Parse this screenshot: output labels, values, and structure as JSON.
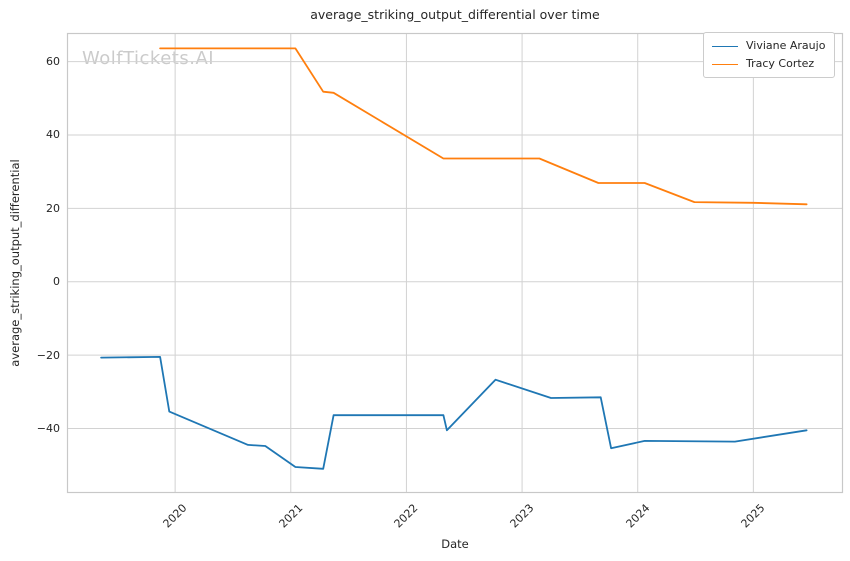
{
  "watermark": {
    "text": "WolfTickets.AI"
  },
  "colors": {
    "background": "#ffffff",
    "grid": "#d2d2d2",
    "axes_border": "#c8c8c8",
    "text": "#262626",
    "watermark": "#cbcbcb",
    "series_blue": "#1f77b4",
    "series_orange": "#ff7f0e"
  },
  "chart_data": {
    "type": "line",
    "title": "average_striking_output_differential over time",
    "xlabel": "Date",
    "ylabel": "average_striking_output_differential",
    "grid": true,
    "legend_position": "upper right",
    "x_range": [
      2019.065,
      2025.775
    ],
    "y_range": [
      -57.6,
      67.8
    ],
    "x_ticks": [
      {
        "v": 2020,
        "label": "2020"
      },
      {
        "v": 2021,
        "label": "2021"
      },
      {
        "v": 2022,
        "label": "2022"
      },
      {
        "v": 2023,
        "label": "2023"
      },
      {
        "v": 2024,
        "label": "2024"
      },
      {
        "v": 2025,
        "label": "2025"
      }
    ],
    "y_ticks": [
      {
        "v": -40,
        "label": "−40"
      },
      {
        "v": -20,
        "label": "−20"
      },
      {
        "v": 0,
        "label": "0"
      },
      {
        "v": 20,
        "label": "20"
      },
      {
        "v": 40,
        "label": "40"
      },
      {
        "v": 60,
        "label": "60"
      }
    ],
    "series": [
      {
        "name": "Viviane Araujo",
        "color": "#1f77b4",
        "points": [
          [
            2019.36,
            -20.7
          ],
          [
            2019.87,
            -20.5
          ],
          [
            2019.95,
            -35.4
          ],
          [
            2020.63,
            -44.5
          ],
          [
            2020.78,
            -44.8
          ],
          [
            2021.04,
            -50.5
          ],
          [
            2021.28,
            -51.0
          ],
          [
            2021.37,
            -36.4
          ],
          [
            2022.32,
            -36.4
          ],
          [
            2022.35,
            -40.5
          ],
          [
            2022.77,
            -26.7
          ],
          [
            2023.25,
            -31.7
          ],
          [
            2023.68,
            -31.5
          ],
          [
            2023.77,
            -45.4
          ],
          [
            2024.06,
            -43.4
          ],
          [
            2024.84,
            -43.6
          ],
          [
            2025.46,
            -40.5
          ]
        ]
      },
      {
        "name": "Tracy Cortez",
        "color": "#ff7f0e",
        "points": [
          [
            2019.87,
            63.6
          ],
          [
            2021.04,
            63.6
          ],
          [
            2021.28,
            51.8
          ],
          [
            2021.37,
            51.5
          ],
          [
            2022.32,
            33.6
          ],
          [
            2023.15,
            33.6
          ],
          [
            2023.66,
            26.9
          ],
          [
            2024.06,
            26.9
          ],
          [
            2024.49,
            21.7
          ],
          [
            2025.0,
            21.5
          ],
          [
            2025.46,
            21.1
          ]
        ]
      }
    ]
  }
}
